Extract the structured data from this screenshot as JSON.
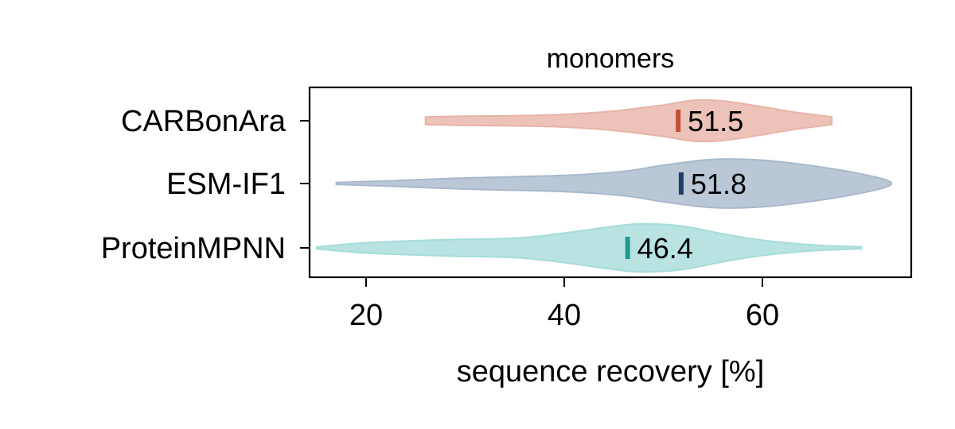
{
  "chart_data": {
    "type": "violin",
    "title": "monomers",
    "xlabel": "sequence recovery [%]",
    "ylabel": "",
    "xlim": [
      14,
      74
    ],
    "xticks": [
      20,
      40,
      60
    ],
    "grid": false,
    "series": [
      {
        "name": "CARBonAra",
        "color": "#c44e32",
        "fill": "#e8b4a8",
        "median": 51.5,
        "median_label": "51.5",
        "min": 26,
        "max": 67,
        "density": [
          [
            26,
            0.15
          ],
          [
            30,
            0.18
          ],
          [
            35,
            0.2
          ],
          [
            40,
            0.25
          ],
          [
            45,
            0.38
          ],
          [
            50,
            0.62
          ],
          [
            53,
            0.8
          ],
          [
            56,
            0.78
          ],
          [
            60,
            0.55
          ],
          [
            63,
            0.35
          ],
          [
            66,
            0.2
          ],
          [
            67,
            0.15
          ]
        ]
      },
      {
        "name": "ESM-IF1",
        "color": "#1f3f6b",
        "fill": "#a9b9cc",
        "median": 51.8,
        "median_label": "51.8",
        "min": 17,
        "max": 73,
        "density": [
          [
            17,
            0.0
          ],
          [
            22,
            0.1
          ],
          [
            30,
            0.22
          ],
          [
            40,
            0.32
          ],
          [
            46,
            0.48
          ],
          [
            50,
            0.72
          ],
          [
            55,
            0.95
          ],
          [
            60,
            0.92
          ],
          [
            65,
            0.7
          ],
          [
            69,
            0.45
          ],
          [
            72,
            0.2
          ],
          [
            73,
            0.05
          ]
        ]
      },
      {
        "name": "ProteinMPNN",
        "color": "#1f9a94",
        "fill": "#a6dcd9",
        "median": 46.4,
        "median_label": "46.4",
        "min": 15,
        "max": 70,
        "density": [
          [
            15,
            0.03
          ],
          [
            20,
            0.2
          ],
          [
            28,
            0.32
          ],
          [
            35,
            0.38
          ],
          [
            40,
            0.58
          ],
          [
            45,
            0.85
          ],
          [
            48,
            0.95
          ],
          [
            52,
            0.85
          ],
          [
            56,
            0.55
          ],
          [
            60,
            0.3
          ],
          [
            65,
            0.12
          ],
          [
            70,
            0.03
          ]
        ]
      }
    ]
  }
}
